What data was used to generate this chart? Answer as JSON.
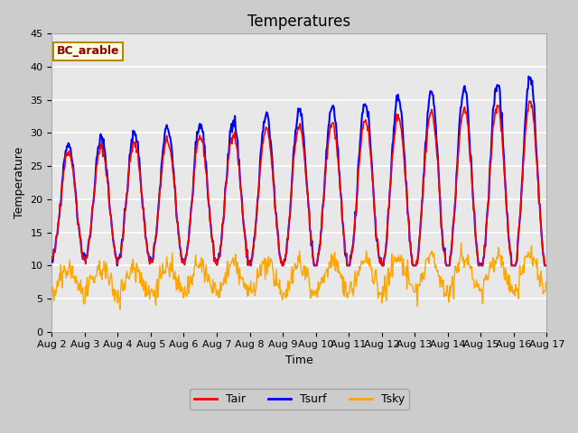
{
  "title": "Temperatures",
  "xlabel": "Time",
  "ylabel": "Temperature",
  "site_label": "BC_arable",
  "ylim": [
    0,
    45
  ],
  "legend_labels": [
    "Tair",
    "Tsurf",
    "Tsky"
  ],
  "tair_color": "red",
  "tsurf_color": "blue",
  "tsky_color": "orange",
  "xtick_labels": [
    "Aug 2",
    "Aug 3",
    "Aug 4",
    "Aug 5",
    "Aug 6",
    "Aug 7",
    "Aug 8",
    "Aug 9",
    "Aug 10",
    "Aug 11",
    "Aug 12",
    "Aug 13",
    "Aug 14",
    "Aug 15",
    "Aug 16",
    "Aug 17"
  ],
  "n_days": 15,
  "samples_per_day": 48,
  "title_fontsize": 12,
  "axis_label_fontsize": 9,
  "tick_fontsize": 8
}
